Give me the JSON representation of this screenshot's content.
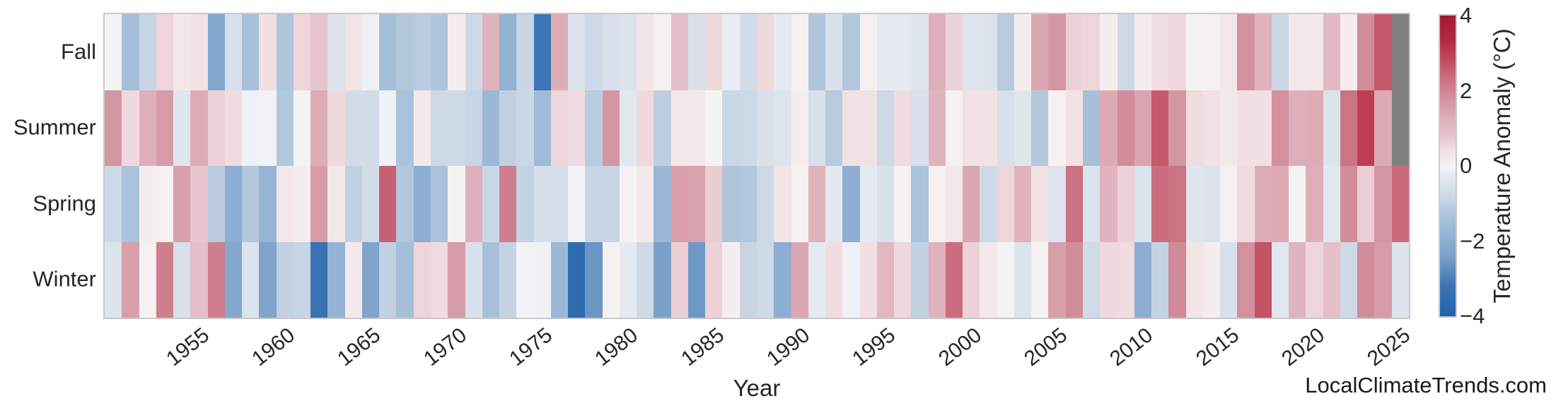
{
  "watermark": "LocalClimateTrends.com",
  "chart_data": {
    "type": "heatmap",
    "title": "",
    "xlabel": "Year",
    "x_start_year": 1950,
    "x_end_year": 2025,
    "x_tick_labels": [
      "1955",
      "1960",
      "1965",
      "1970",
      "1975",
      "1980",
      "1985",
      "1990",
      "1995",
      "2000",
      "2005",
      "2010",
      "2015",
      "2020",
      "2025"
    ],
    "rows": [
      "Fall",
      "Summer",
      "Spring",
      "Winter"
    ],
    "colorbar": {
      "label": "Temperature Anomaly (°C)",
      "min": -4,
      "max": 4,
      "tick_values": [
        4,
        2,
        0,
        -2,
        -4
      ],
      "tick_labels": [
        "4",
        "2",
        "0",
        "−2",
        "−4"
      ]
    },
    "missing_value_color": "#7f7f7f",
    "frame_color": "#c9c9c9",
    "text_color": "#262626",
    "colormap_stops": [
      [
        -4.0,
        "#2064ac"
      ],
      [
        -3.2,
        "#3c74b4"
      ],
      [
        -2.4,
        "#7ba1c9"
      ],
      [
        -1.8,
        "#96b5d6"
      ],
      [
        -1.2,
        "#b4c8dd"
      ],
      [
        -0.8,
        "#cdd9e7"
      ],
      [
        -0.4,
        "#e0e6ee"
      ],
      [
        -0.1,
        "#eef1f5"
      ],
      [
        0.0,
        "#f4f3f4"
      ],
      [
        0.1,
        "#f6eeee"
      ],
      [
        0.4,
        "#f1dfe1"
      ],
      [
        0.8,
        "#e7c5cc"
      ],
      [
        1.2,
        "#dfb2bc"
      ],
      [
        1.6,
        "#d79ca9"
      ],
      [
        2.0,
        "#cf8493"
      ],
      [
        2.4,
        "#c96a7b"
      ],
      [
        2.8,
        "#c24b5f"
      ],
      [
        3.3,
        "#b52b40"
      ],
      [
        4.0,
        "#a11a30"
      ]
    ],
    "series": [
      {
        "name": "Fall",
        "values": [
          0.0,
          -1.5,
          -0.9,
          0.55,
          0.25,
          0.35,
          -2.2,
          -0.6,
          -1.45,
          0.4,
          -1.3,
          0.55,
          0.8,
          -0.5,
          0.3,
          -0.1,
          -1.5,
          -1.2,
          -1.1,
          -1.3,
          0.1,
          -0.8,
          1.2,
          -1.9,
          -0.9,
          -3.2,
          1.3,
          -0.5,
          -0.8,
          -0.6,
          -0.5,
          0.3,
          0.05,
          0.95,
          -0.55,
          0.5,
          -0.2,
          -0.7,
          0.5,
          -0.3,
          0.05,
          -1.3,
          -0.55,
          -1.2,
          0.05,
          -0.3,
          -0.3,
          -0.45,
          1.25,
          0.6,
          -0.45,
          -0.5,
          -1.15,
          0.1,
          1.4,
          1.7,
          0.6,
          0.55,
          0.1,
          -0.8,
          0.15,
          0.4,
          0.5,
          0.0,
          0.05,
          0.25,
          1.8,
          1.2,
          -0.85,
          0.2,
          0.25,
          1.05,
          0.1,
          1.85,
          2.6,
          null
        ]
      },
      {
        "name": "Summer",
        "values": [
          1.7,
          0.5,
          1.25,
          1.6,
          -0.4,
          1.3,
          0.6,
          0.45,
          -0.1,
          -0.05,
          -1.2,
          0.0,
          1.3,
          0.5,
          -0.7,
          -0.7,
          -0.1,
          -1.4,
          0.2,
          -0.8,
          -0.8,
          -0.9,
          -1.7,
          -1.0,
          -0.85,
          -1.6,
          0.55,
          0.45,
          -1.1,
          1.7,
          -0.35,
          0.5,
          -1.05,
          0.25,
          0.2,
          0.0,
          -0.85,
          -0.8,
          -0.6,
          -0.45,
          0.1,
          -0.6,
          -1.15,
          0.35,
          0.35,
          -0.8,
          0.45,
          -0.6,
          1.15,
          0.05,
          0.35,
          0.35,
          -0.6,
          -0.4,
          -1.2,
          0.05,
          0.35,
          -1.5,
          1.35,
          1.85,
          1.45,
          2.6,
          1.7,
          0.45,
          0.35,
          0.2,
          0.4,
          0.4,
          1.8,
          1.25,
          1.3,
          -0.5,
          2.25,
          3.0,
          1.35,
          null
        ]
      },
      {
        "name": "Spring",
        "values": [
          -0.8,
          -1.4,
          0.1,
          0.05,
          1.55,
          0.8,
          -1.15,
          -2.0,
          -1.25,
          -1.8,
          0.25,
          0.1,
          1.6,
          0.25,
          -1.0,
          -0.7,
          2.5,
          -1.2,
          -2.0,
          -1.4,
          0.0,
          1.25,
          -0.85,
          2.1,
          -0.95,
          -0.65,
          -0.65,
          -0.05,
          -0.9,
          -0.9,
          0.0,
          0.2,
          -1.7,
          1.55,
          1.5,
          0.7,
          -1.3,
          -1.2,
          -0.8,
          0.3,
          0.05,
          1.2,
          -0.35,
          -2.0,
          -0.3,
          -0.55,
          0.05,
          -1.4,
          0.05,
          0.25,
          1.4,
          -0.8,
          0.55,
          1.2,
          0.35,
          -0.45,
          2.3,
          -0.5,
          1.15,
          0.6,
          -0.5,
          2.35,
          2.25,
          -0.4,
          -0.5,
          0.05,
          0.45,
          1.3,
          1.35,
          0.0,
          1.25,
          -0.35,
          1.85,
          0.65,
          1.7,
          2.4
        ]
      },
      {
        "name": "Winter",
        "values": [
          -0.5,
          1.55,
          0.05,
          2.1,
          -0.55,
          0.9,
          2.1,
          -2.2,
          -0.5,
          -2.3,
          -1.0,
          -0.9,
          -3.3,
          -1.85,
          0.2,
          -2.3,
          -1.0,
          -1.5,
          0.55,
          0.45,
          1.6,
          -0.55,
          -1.45,
          -0.95,
          -0.05,
          -0.1,
          -1.7,
          -3.6,
          -2.6,
          0.05,
          -0.3,
          -0.8,
          -2.4,
          0.65,
          -2.55,
          0.6,
          0.1,
          -0.9,
          -0.8,
          -2.0,
          1.4,
          -0.3,
          0.45,
          -0.1,
          0.4,
          1.1,
          0.5,
          -1.0,
          1.2,
          2.35,
          0.6,
          0.2,
          0.0,
          -0.5,
          0.05,
          1.55,
          1.85,
          -0.75,
          0.5,
          0.45,
          -2.0,
          -0.95,
          1.9,
          0.3,
          0.1,
          -0.6,
          1.8,
          2.7,
          -0.4,
          1.15,
          0.55,
          0.9,
          -0.8,
          1.85,
          1.6,
          -0.5
        ]
      }
    ]
  }
}
